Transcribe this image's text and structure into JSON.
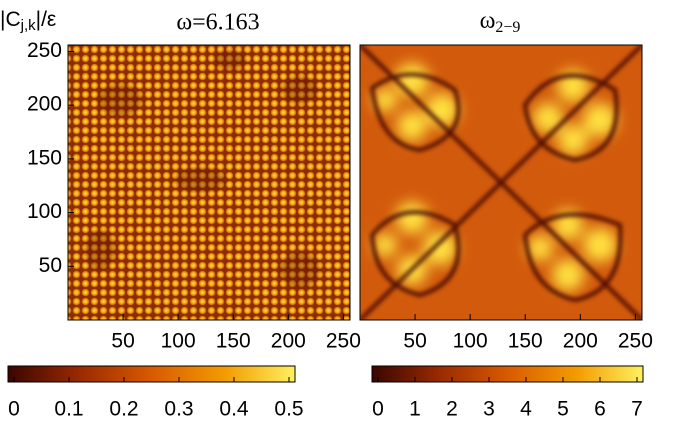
{
  "chart_data": [
    {
      "type": "heatmap",
      "title": "ω=6.163",
      "ylabel": {
        "main": "|C",
        "sub": "j,k",
        "tail": "|/ε"
      },
      "xlim": [
        0,
        256
      ],
      "ylim": [
        0,
        256
      ],
      "xticks": [
        50,
        100,
        150,
        200,
        250
      ],
      "yticks": [
        50,
        100,
        150,
        200,
        250
      ],
      "colormap": [
        "#3a0600",
        "#9a2a00",
        "#d85a00",
        "#f29a00",
        "#fff060"
      ],
      "colorbar": {
        "lim": [
          0,
          0.5
        ],
        "ticks": [
          0,
          0.1,
          0.2,
          0.3,
          0.4,
          0.5
        ]
      }
    },
    {
      "type": "heatmap",
      "title": "ω",
      "title_sub": "2−9",
      "xlim": [
        0,
        256
      ],
      "ylim": [
        0,
        256
      ],
      "xticks": [
        50,
        100,
        150,
        200,
        250
      ],
      "colormap": [
        "#3a0600",
        "#9a2a00",
        "#d85a00",
        "#f29a00",
        "#fff060"
      ],
      "colorbar": {
        "lim": [
          0,
          7
        ],
        "ticks": [
          0,
          1,
          2,
          3,
          4,
          5,
          6,
          7
        ]
      }
    }
  ]
}
